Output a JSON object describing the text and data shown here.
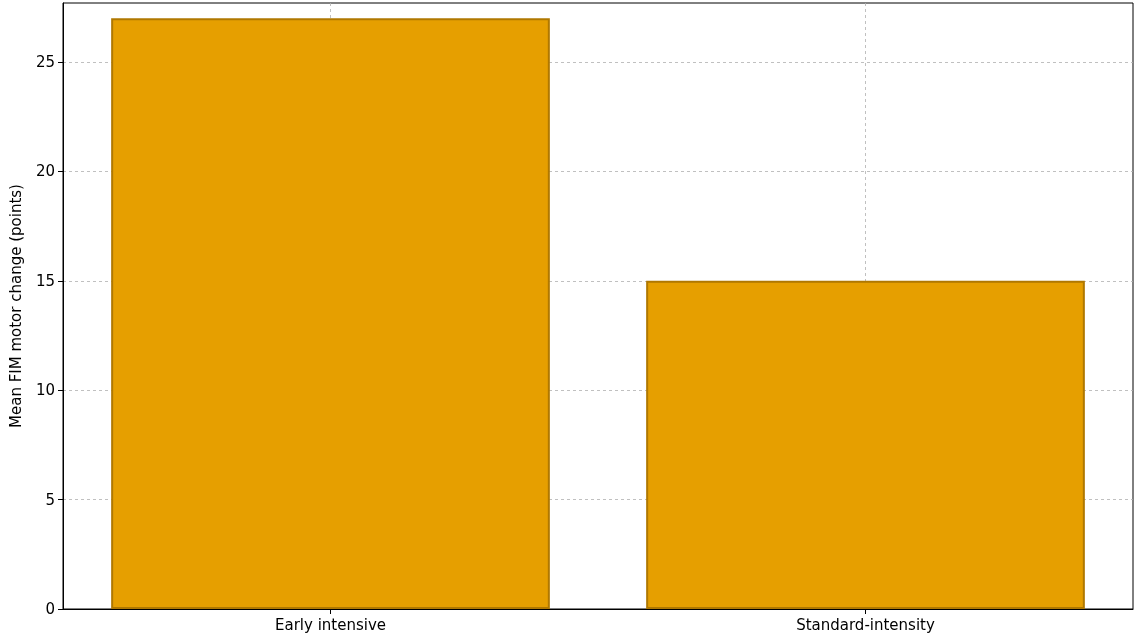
{
  "chart_data": {
    "type": "bar",
    "ylabel": "Mean FIM motor change (points)",
    "categories": [
      "Early intensive",
      "Standard-intensity"
    ],
    "values": [
      27,
      15
    ],
    "color": "#e69f00",
    "ylim": [
      0,
      27.7
    ],
    "yticks": [
      0,
      5,
      10,
      15,
      20,
      25
    ],
    "grid": true
  }
}
